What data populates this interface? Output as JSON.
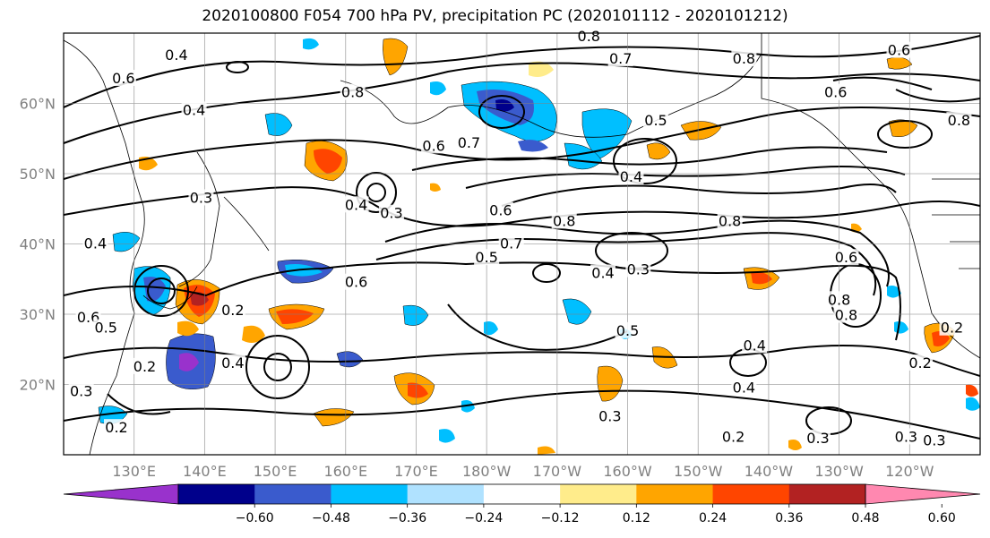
{
  "title": "2020100800 F054 700 hPa PV, precipitation PC (2020101112 - 2020101212)",
  "lat_ticks": [
    {
      "label": "60°N",
      "lat": 60
    },
    {
      "label": "50°N",
      "lat": 50
    },
    {
      "label": "40°N",
      "lat": 40
    },
    {
      "label": "30°N",
      "lat": 30
    },
    {
      "label": "20°N",
      "lat": 20
    }
  ],
  "lon_ticks": [
    {
      "label": "130°E",
      "lon": 130
    },
    {
      "label": "140°E",
      "lon": 140
    },
    {
      "label": "150°E",
      "lon": 150
    },
    {
      "label": "160°E",
      "lon": 160
    },
    {
      "label": "170°E",
      "lon": 170
    },
    {
      "label": "180°W",
      "lon": 180
    },
    {
      "label": "170°W",
      "lon": 190
    },
    {
      "label": "160°W",
      "lon": 200
    },
    {
      "label": "150°W",
      "lon": 210
    },
    {
      "label": "140°W",
      "lon": 220
    },
    {
      "label": "130°W",
      "lon": 230
    },
    {
      "label": "120°W",
      "lon": 240
    }
  ],
  "map_extent": {
    "lon_min": 120,
    "lon_max": 250,
    "lat_min": 10,
    "lat_max": 70
  },
  "colorbar": {
    "colors": [
      "#9932CC",
      "#00008B",
      "#3A5BCD",
      "#00BFFF",
      "#B0E2FF",
      "#FFFFFF",
      "#FFEC8B",
      "#FFA500",
      "#FF4500",
      "#B22222",
      "#FF88B0"
    ],
    "ticks": [
      "-0.60",
      "-0.48",
      "-0.36",
      "-0.24",
      "-0.12",
      "0.12",
      "0.24",
      "0.36",
      "0.48",
      "0.60"
    ]
  },
  "contour_labels": [
    {
      "text": "0.8",
      "lon": 194.5,
      "lat": 69.5
    },
    {
      "text": "0.4",
      "lon": 136.0,
      "lat": 66.8
    },
    {
      "text": "0.7",
      "lon": 199.0,
      "lat": 66.3
    },
    {
      "text": "0.8",
      "lon": 216.5,
      "lat": 66.3
    },
    {
      "text": "0.6",
      "lon": 238.5,
      "lat": 67.5
    },
    {
      "text": "0.6",
      "lon": 128.5,
      "lat": 63.5
    },
    {
      "text": "0.8",
      "lon": 161.0,
      "lat": 61.5
    },
    {
      "text": "0.6",
      "lon": 229.5,
      "lat": 61.5
    },
    {
      "text": "0.4",
      "lon": 138.5,
      "lat": 59.0
    },
    {
      "text": "0.5",
      "lon": 204.0,
      "lat": 57.5
    },
    {
      "text": "0.8",
      "lon": 247.0,
      "lat": 57.5
    },
    {
      "text": "0.6",
      "lon": 172.5,
      "lat": 53.9
    },
    {
      "text": "0.7",
      "lon": 177.5,
      "lat": 54.3
    },
    {
      "text": "0.4",
      "lon": 200.5,
      "lat": 49.5
    },
    {
      "text": "0.3",
      "lon": 139.5,
      "lat": 46.5
    },
    {
      "text": "0.4",
      "lon": 161.5,
      "lat": 45.5
    },
    {
      "text": "0.3",
      "lon": 166.5,
      "lat": 44.3
    },
    {
      "text": "0.6",
      "lon": 182.0,
      "lat": 44.7
    },
    {
      "text": "0.8",
      "lon": 191.0,
      "lat": 43.2
    },
    {
      "text": "0.8",
      "lon": 214.5,
      "lat": 43.2
    },
    {
      "text": "0.4",
      "lon": 124.5,
      "lat": 40.0
    },
    {
      "text": "0.7",
      "lon": 183.5,
      "lat": 40.0
    },
    {
      "text": "0.5",
      "lon": 180.0,
      "lat": 38.0
    },
    {
      "text": "0.4",
      "lon": 196.5,
      "lat": 35.8
    },
    {
      "text": "0.3",
      "lon": 201.5,
      "lat": 36.3
    },
    {
      "text": "0.6",
      "lon": 231.0,
      "lat": 38.0
    },
    {
      "text": "0.6",
      "lon": 161.5,
      "lat": 34.5
    },
    {
      "text": "0.8",
      "lon": 230.0,
      "lat": 32.0
    },
    {
      "text": "0.8",
      "lon": 231.0,
      "lat": 29.8
    },
    {
      "text": "0.2",
      "lon": 144.0,
      "lat": 30.5
    },
    {
      "text": "0.6",
      "lon": 123.5,
      "lat": 29.5
    },
    {
      "text": "0.5",
      "lon": 126.0,
      "lat": 28.0
    },
    {
      "text": "0.5",
      "lon": 200.0,
      "lat": 27.6
    },
    {
      "text": "0.4",
      "lon": 218.0,
      "lat": 25.5
    },
    {
      "text": "0.2",
      "lon": 246.0,
      "lat": 28.0
    },
    {
      "text": "0.2",
      "lon": 131.5,
      "lat": 22.5
    },
    {
      "text": "0.4",
      "lon": 144.0,
      "lat": 23.0
    },
    {
      "text": "0.2",
      "lon": 241.5,
      "lat": 23.0
    },
    {
      "text": "0.4",
      "lon": 216.5,
      "lat": 19.5
    },
    {
      "text": "0.3",
      "lon": 122.5,
      "lat": 19.0
    },
    {
      "text": "0.3",
      "lon": 197.5,
      "lat": 15.4
    },
    {
      "text": "0.2",
      "lon": 127.5,
      "lat": 13.8
    },
    {
      "text": "0.2",
      "lon": 215.0,
      "lat": 12.5
    },
    {
      "text": "0.3",
      "lon": 227.0,
      "lat": 12.3
    },
    {
      "text": "0.3",
      "lon": 239.5,
      "lat": 12.5
    },
    {
      "text": "0.3",
      "lon": 243.5,
      "lat": 12.0
    }
  ]
}
